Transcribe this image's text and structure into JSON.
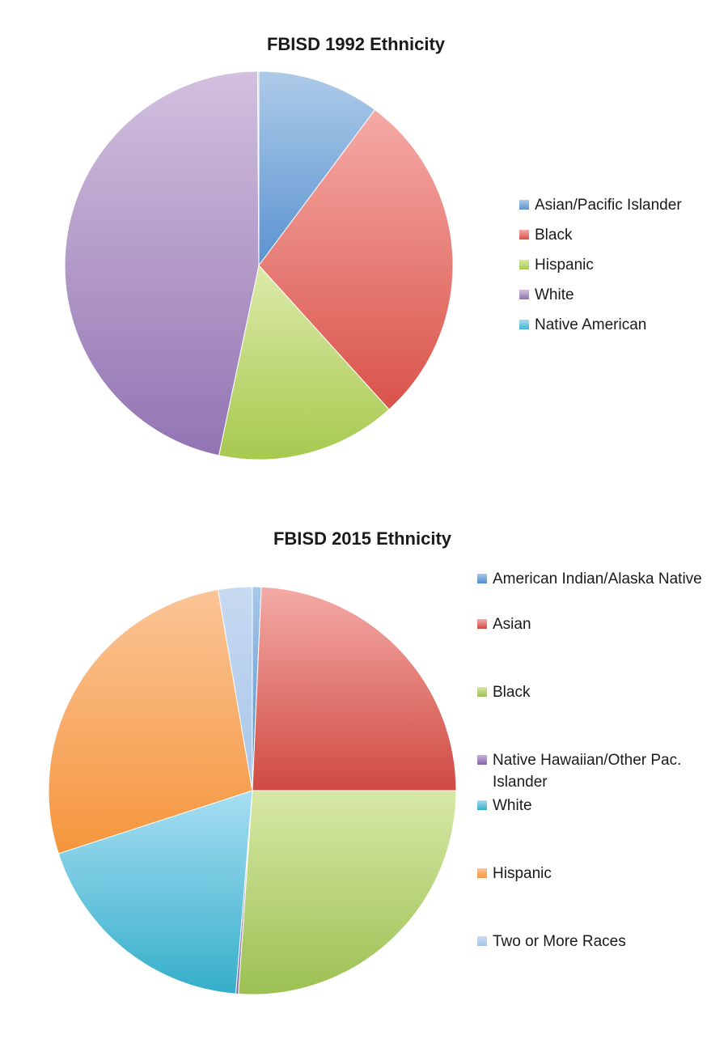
{
  "charts": [
    {
      "id": "1992",
      "chart_data": {
        "type": "pie",
        "title": "FBISD 1992 Ethnicity",
        "legend_position": "right",
        "start_angle_deg": 0,
        "direction": "clockwise",
        "categories": [
          "Asian/Pacific Islander",
          "Black",
          "Hispanic",
          "White",
          "Native American"
        ],
        "values": [
          10.2,
          28.1,
          15.0,
          46.6,
          0.1
        ],
        "unit": "percent",
        "colors": [
          [
            "#aecbe9",
            "#5a93d0"
          ],
          [
            "#f6aaa6",
            "#d9534a"
          ],
          [
            "#dceaaa",
            "#a6c94e"
          ],
          [
            "#d3c0de",
            "#9274b3"
          ],
          [
            "#a6e1f2",
            "#3eb3cf"
          ]
        ]
      }
    },
    {
      "id": "2015",
      "chart_data": {
        "type": "pie",
        "title": "FBISD 2015 Ethnicity",
        "legend_position": "right",
        "start_angle_deg": 0,
        "direction": "clockwise",
        "categories": [
          "American Indian/Alaska Native",
          "Asian",
          "Black",
          "Native Hawaiian/Other Pac. Islander",
          "White",
          "Hispanic",
          "Two or More Races"
        ],
        "values": [
          0.7,
          24.3,
          26.1,
          0.2,
          18.7,
          27.3,
          2.7
        ],
        "unit": "percent",
        "colors": [
          [
            "#a8c8ea",
            "#4f8dcf"
          ],
          [
            "#f4aaa6",
            "#cf4a42"
          ],
          [
            "#d7e8a6",
            "#9cc052"
          ],
          [
            "#c6b2d8",
            "#8465ad"
          ],
          [
            "#a7def3",
            "#35aec9"
          ],
          [
            "#fbc597",
            "#f5953c"
          ],
          [
            "#c7daf1",
            "#a8c5ea"
          ]
        ]
      }
    }
  ]
}
